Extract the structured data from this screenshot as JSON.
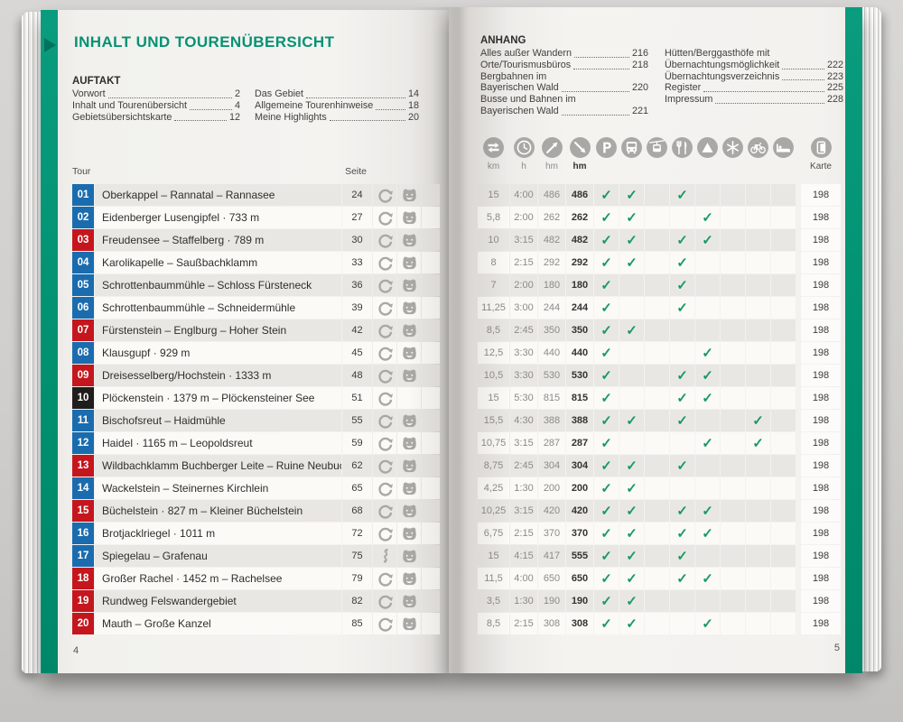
{
  "book": {
    "accent_color": "#069273",
    "check_color": "#189a61",
    "badge_colors": {
      "blue": "#1a6cae",
      "red": "#c5161d",
      "black": "#1f1e1c"
    }
  },
  "left_page": {
    "title": "INHALT UND TOURENÜBERSICHT",
    "auftakt": {
      "heading": "AUFTAKT",
      "col1": [
        {
          "lines": [
            "Vorwort"
          ],
          "page": "2"
        },
        {
          "lines": [
            "Inhalt und Tourenübersicht"
          ],
          "page": "4"
        },
        {
          "lines": [
            "Gebietsübersichtskarte"
          ],
          "page": "12"
        }
      ],
      "col2": [
        {
          "lines": [
            "Das Gebiet"
          ],
          "page": "14"
        },
        {
          "lines": [
            "Allgemeine Tourenhinweise"
          ],
          "page": "18"
        },
        {
          "lines": [
            "Meine Highlights"
          ],
          "page": "20"
        }
      ]
    },
    "table_head": {
      "tour": "Tour",
      "seite": "Seite"
    },
    "page_number": "4"
  },
  "right_page": {
    "anhang": {
      "heading": "ANHANG",
      "col1": [
        {
          "lines": [
            "Alles außer Wandern"
          ],
          "page": "216"
        },
        {
          "lines": [
            "Orte/Tourismusbüros"
          ],
          "page": "218"
        },
        {
          "lines": [
            "Bergbahnen im",
            "Bayerischen Wald"
          ],
          "page": "220"
        },
        {
          "lines": [
            "Busse und Bahnen im",
            "Bayerischen Wald"
          ],
          "page": "221"
        }
      ],
      "col2": [
        {
          "lines": [
            "Hütten/Berggasthöfe mit",
            "Übernachtungsmöglichkeit"
          ],
          "page": "222"
        },
        {
          "lines": [
            "Übernachtungsverzeichnis"
          ],
          "page": "223"
        },
        {
          "lines": [
            "Register"
          ],
          "page": "225"
        },
        {
          "lines": [
            "Impressum"
          ],
          "page": "228"
        }
      ]
    },
    "columns": [
      {
        "icon": "signpost",
        "label": "km"
      },
      {
        "icon": "clock",
        "label": "h"
      },
      {
        "icon": "ascent",
        "label": "hm"
      },
      {
        "icon": "descent",
        "label": "hm",
        "strong": true
      },
      {
        "icon": "parking"
      },
      {
        "icon": "bus"
      },
      {
        "icon": "cablecar"
      },
      {
        "icon": "restaurant"
      },
      {
        "icon": "summit"
      },
      {
        "icon": "snowflake"
      },
      {
        "icon": "bike"
      },
      {
        "icon": "bed"
      },
      {
        "icon": "map",
        "label": "Karte"
      }
    ],
    "page_number": "5"
  },
  "tours": [
    {
      "nr": "01",
      "badge": "blue",
      "name": "Oberkappel – Rannatal – Rannasee",
      "page": "24",
      "icons": [
        "loop",
        "bear"
      ],
      "km": "15",
      "h": "4:00",
      "hm_up": "486",
      "hm_down": "486",
      "checks": [
        "parking",
        "bus",
        "restaurant"
      ],
      "karte": "198"
    },
    {
      "nr": "02",
      "badge": "blue",
      "name": "Eidenberger Lusengipfel · 733 m",
      "page": "27",
      "icons": [
        "loop",
        "bear"
      ],
      "km": "5,8",
      "h": "2:00",
      "hm_up": "262",
      "hm_down": "262",
      "checks": [
        "parking",
        "bus",
        "summit"
      ],
      "karte": "198"
    },
    {
      "nr": "03",
      "badge": "red",
      "name": "Freudensee – Staffelberg · 789 m",
      "page": "30",
      "icons": [
        "loop",
        "bear"
      ],
      "km": "10",
      "h": "3:15",
      "hm_up": "482",
      "hm_down": "482",
      "checks": [
        "parking",
        "bus",
        "restaurant",
        "summit"
      ],
      "karte": "198"
    },
    {
      "nr": "04",
      "badge": "blue",
      "name": "Karolikapelle – Saußbachklamm",
      "page": "33",
      "icons": [
        "loop",
        "bear"
      ],
      "km": "8",
      "h": "2:15",
      "hm_up": "292",
      "hm_down": "292",
      "checks": [
        "parking",
        "bus",
        "restaurant"
      ],
      "karte": "198"
    },
    {
      "nr": "05",
      "badge": "blue",
      "name": "Schrottenbaummühle – Schloss Fürsteneck",
      "page": "36",
      "icons": [
        "loop",
        "bear"
      ],
      "km": "7",
      "h": "2:00",
      "hm_up": "180",
      "hm_down": "180",
      "checks": [
        "parking",
        "restaurant"
      ],
      "karte": "198"
    },
    {
      "nr": "06",
      "badge": "blue",
      "name": "Schrottenbaummühle – Schneidermühle",
      "page": "39",
      "icons": [
        "loop",
        "bear"
      ],
      "km": "11,25",
      "h": "3:00",
      "hm_up": "244",
      "hm_down": "244",
      "checks": [
        "parking",
        "restaurant"
      ],
      "karte": "198"
    },
    {
      "nr": "07",
      "badge": "red",
      "name": "Fürstenstein – Englburg – Hoher Stein",
      "page": "42",
      "icons": [
        "loop",
        "bear"
      ],
      "km": "8,5",
      "h": "2:45",
      "hm_up": "350",
      "hm_down": "350",
      "checks": [
        "parking",
        "bus"
      ],
      "karte": "198"
    },
    {
      "nr": "08",
      "badge": "blue",
      "name": "Klausgupf · 929 m",
      "page": "45",
      "icons": [
        "loop",
        "bear"
      ],
      "km": "12,5",
      "h": "3:30",
      "hm_up": "440",
      "hm_down": "440",
      "checks": [
        "parking",
        "summit"
      ],
      "karte": "198"
    },
    {
      "nr": "09",
      "badge": "red",
      "name": "Dreisesselberg/Hochstein · 1333 m",
      "page": "48",
      "icons": [
        "loop",
        "bear"
      ],
      "km": "10,5",
      "h": "3:30",
      "hm_up": "530",
      "hm_down": "530",
      "checks": [
        "parking",
        "restaurant",
        "summit"
      ],
      "karte": "198"
    },
    {
      "nr": "10",
      "badge": "black",
      "name": "Plöckenstein · 1379 m – Plöckensteiner See",
      "page": "51",
      "icons": [
        "loop"
      ],
      "km": "15",
      "h": "5:30",
      "hm_up": "815",
      "hm_down": "815",
      "checks": [
        "parking",
        "restaurant",
        "summit"
      ],
      "karte": "198"
    },
    {
      "nr": "11",
      "badge": "blue",
      "name": "Bischofsreut – Haidmühle",
      "page": "55",
      "icons": [
        "loop",
        "bear"
      ],
      "km": "15,5",
      "h": "4:30",
      "hm_up": "388",
      "hm_down": "388",
      "checks": [
        "parking",
        "bus",
        "restaurant",
        "bike"
      ],
      "karte": "198"
    },
    {
      "nr": "12",
      "badge": "blue",
      "name": "Haidel · 1165 m – Leopoldsreut",
      "page": "59",
      "icons": [
        "loop",
        "bear"
      ],
      "km": "10,75",
      "h": "3:15",
      "hm_up": "287",
      "hm_down": "287",
      "checks": [
        "parking",
        "summit",
        "bike"
      ],
      "karte": "198"
    },
    {
      "nr": "13",
      "badge": "red",
      "name": "Wildbachklamm Buchberger Leite – Ruine Neubuchberg",
      "page": "62",
      "icons": [
        "loop",
        "bear"
      ],
      "km": "8,75",
      "h": "2:45",
      "hm_up": "304",
      "hm_down": "304",
      "checks": [
        "parking",
        "bus",
        "restaurant"
      ],
      "karte": "198"
    },
    {
      "nr": "14",
      "badge": "blue",
      "name": "Wackelstein – Steinernes Kirchlein",
      "page": "65",
      "icons": [
        "loop",
        "bear"
      ],
      "km": "4,25",
      "h": "1:30",
      "hm_up": "200",
      "hm_down": "200",
      "checks": [
        "parking",
        "bus"
      ],
      "karte": "198"
    },
    {
      "nr": "15",
      "badge": "red",
      "name": "Büchelstein · 827 m – Kleiner Büchelstein",
      "page": "68",
      "icons": [
        "loop",
        "bear"
      ],
      "km": "10,25",
      "h": "3:15",
      "hm_up": "420",
      "hm_down": "420",
      "checks": [
        "parking",
        "bus",
        "restaurant",
        "summit"
      ],
      "karte": "198"
    },
    {
      "nr": "16",
      "badge": "blue",
      "name": "Brotjacklriegel · 1011 m",
      "page": "72",
      "icons": [
        "loop",
        "bear"
      ],
      "km": "6,75",
      "h": "2:15",
      "hm_up": "370",
      "hm_down": "370",
      "checks": [
        "parking",
        "bus",
        "restaurant",
        "summit"
      ],
      "karte": "198"
    },
    {
      "nr": "17",
      "badge": "blue",
      "name": "Spiegelau – Grafenau",
      "page": "75",
      "icons": [
        "route",
        "bear"
      ],
      "km": "15",
      "h": "4:15",
      "hm_up": "417",
      "hm_down": "555",
      "checks": [
        "parking",
        "bus",
        "restaurant"
      ],
      "karte": "198"
    },
    {
      "nr": "18",
      "badge": "red",
      "name": "Großer Rachel · 1452 m – Rachelsee",
      "page": "79",
      "icons": [
        "loop",
        "bear"
      ],
      "km": "11,5",
      "h": "4:00",
      "hm_up": "650",
      "hm_down": "650",
      "checks": [
        "parking",
        "bus",
        "restaurant",
        "summit"
      ],
      "karte": "198"
    },
    {
      "nr": "19",
      "badge": "red",
      "name": "Rundweg Felswandergebiet",
      "page": "82",
      "icons": [
        "loop",
        "bear"
      ],
      "km": "3,5",
      "h": "1:30",
      "hm_up": "190",
      "hm_down": "190",
      "checks": [
        "parking",
        "bus"
      ],
      "karte": "198"
    },
    {
      "nr": "20",
      "badge": "red",
      "name": "Mauth – Große Kanzel",
      "page": "85",
      "icons": [
        "loop",
        "bear"
      ],
      "km": "8,5",
      "h": "2:15",
      "hm_up": "308",
      "hm_down": "308",
      "checks": [
        "parking",
        "bus",
        "summit"
      ],
      "karte": "198"
    }
  ]
}
